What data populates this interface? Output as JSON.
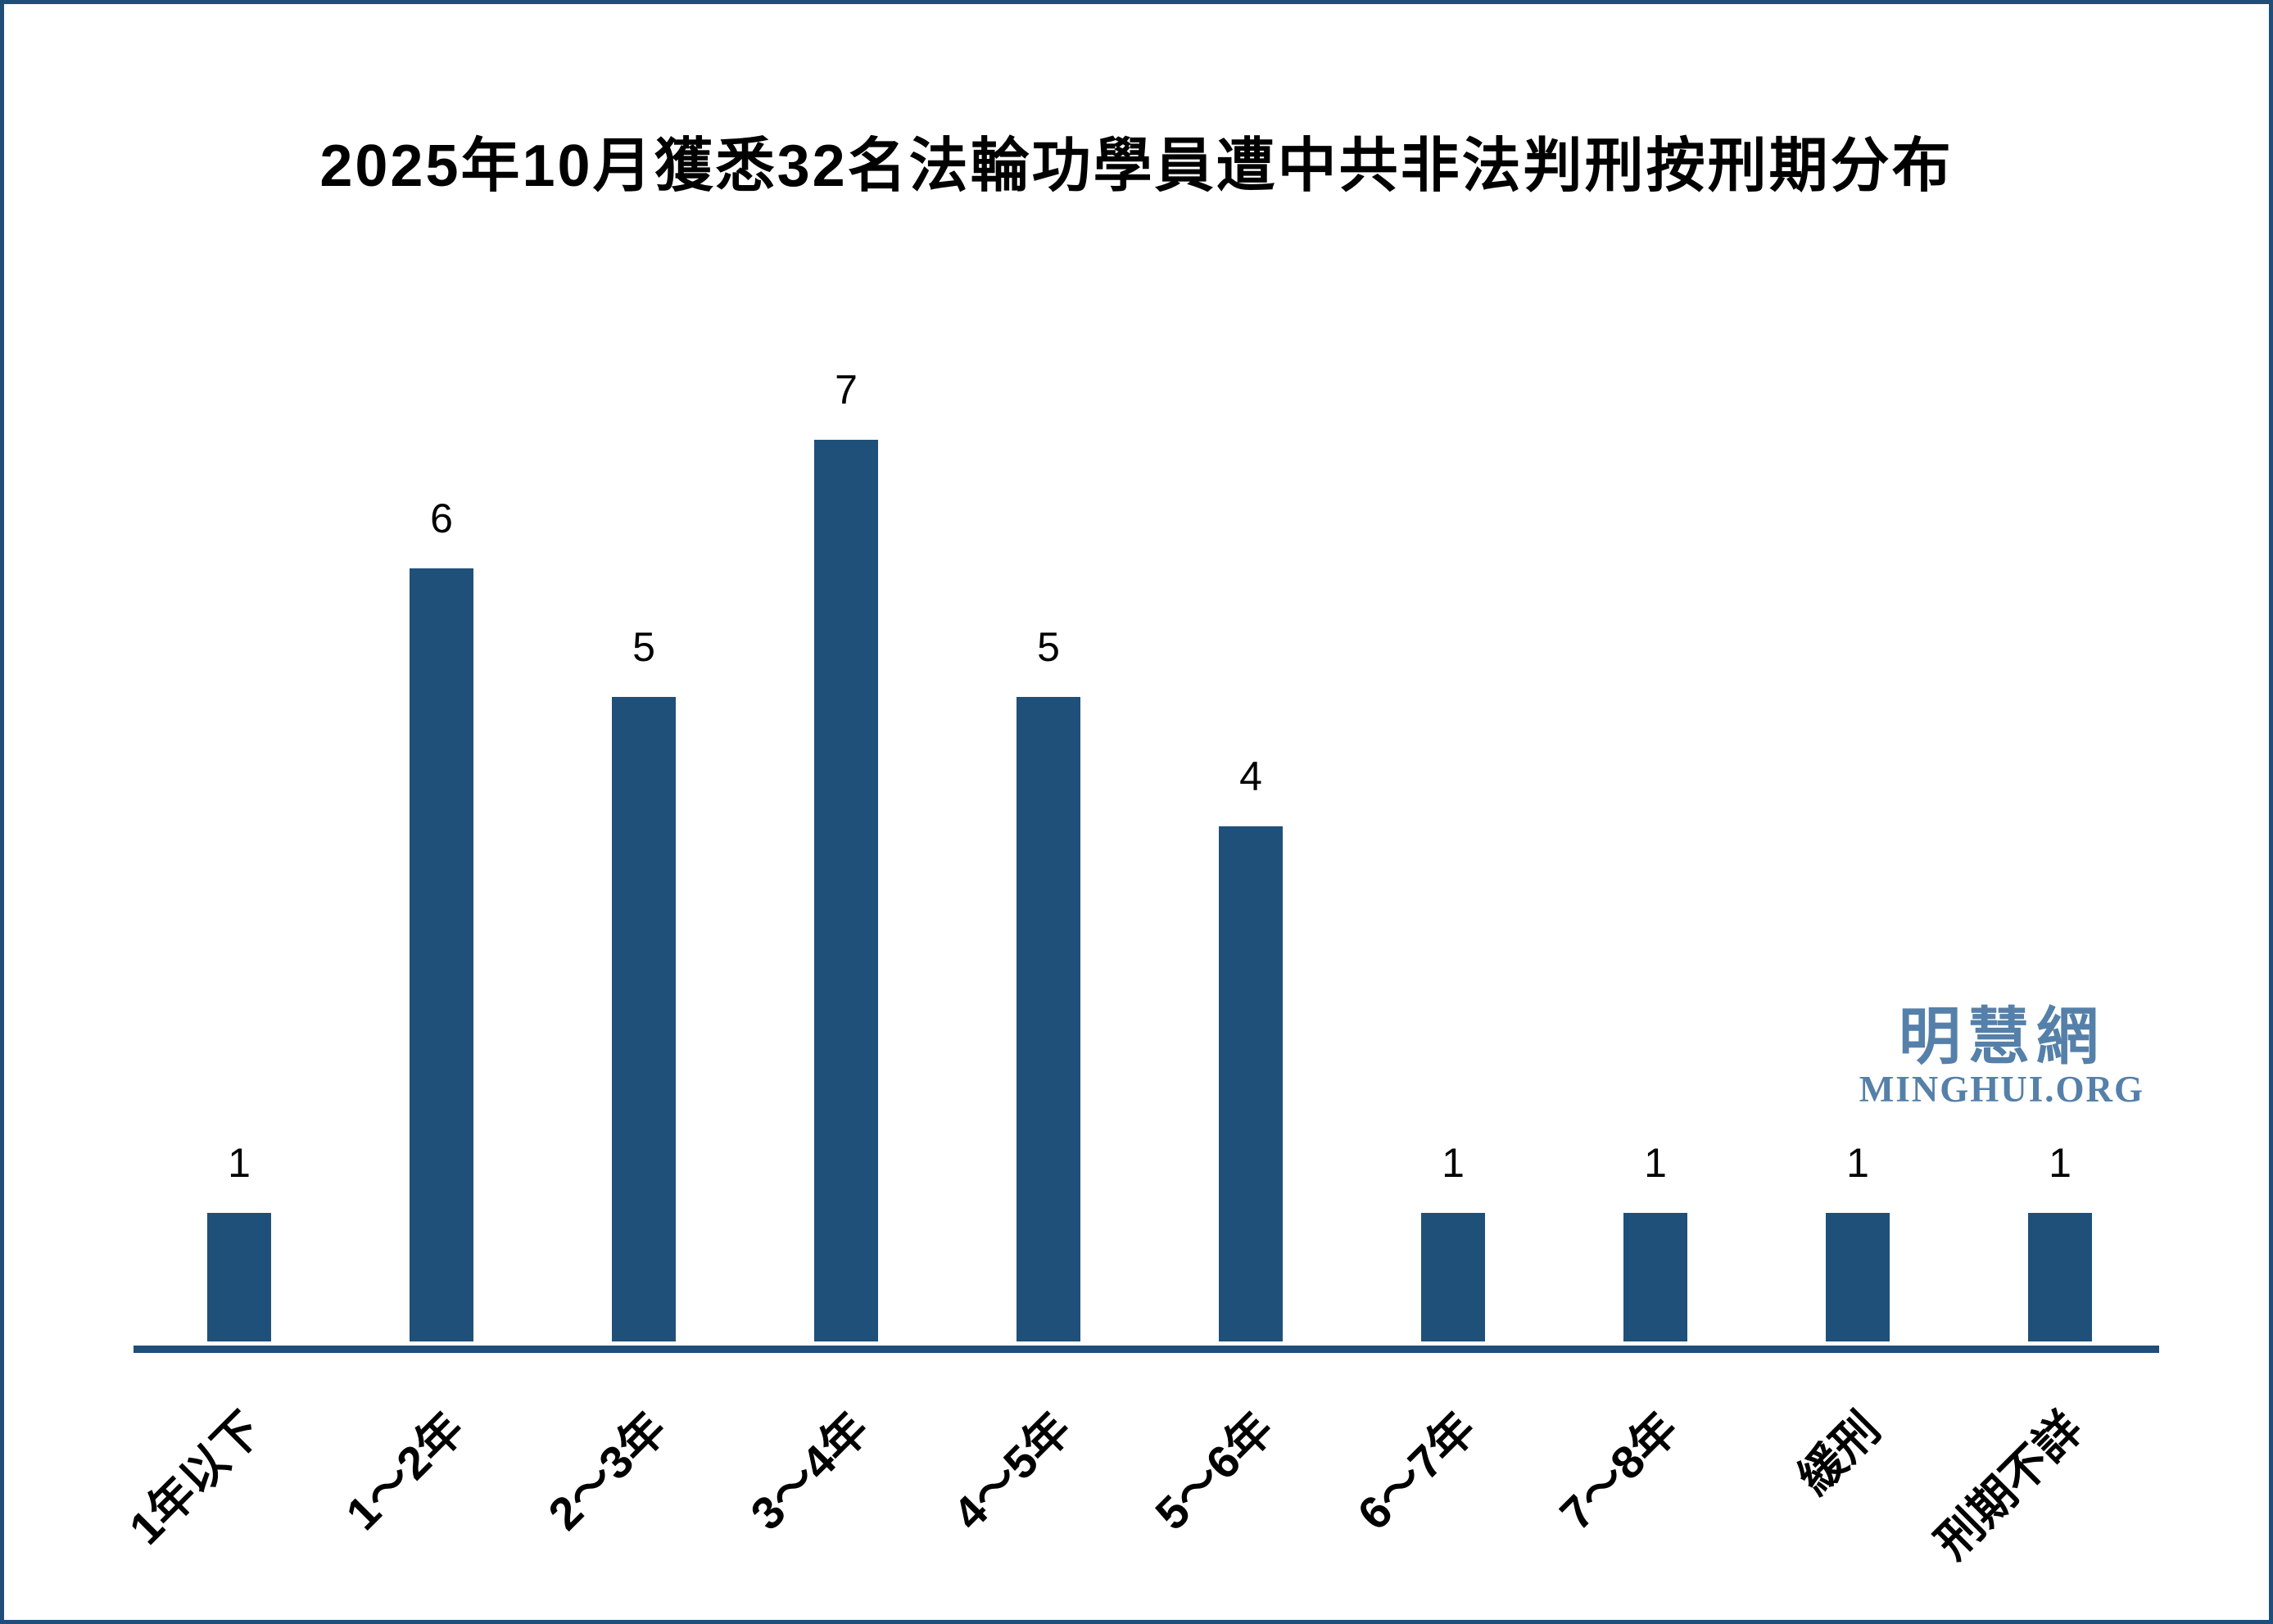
{
  "chart_data": {
    "type": "bar",
    "title": "2025年10月獲悉32名法輪功學員遭中共非法判刑按刑期分布",
    "categories": [
      "1年以下",
      "1～2年",
      "2～3年",
      "3～4年",
      "4～5年",
      "5～6年",
      "6～7年",
      "7～8年",
      "緩刑",
      "刑期不詳"
    ],
    "values": [
      1,
      6,
      5,
      7,
      5,
      4,
      1,
      1,
      1,
      1
    ],
    "xlabel": "",
    "ylabel": "",
    "ylim": [
      0,
      7.7
    ],
    "grid": false,
    "legend_position": "none",
    "value_labels_shown": true,
    "bar_color": "#1F5079",
    "axis_color": "#1F4E79",
    "tick_label_rotation_deg": 45
  },
  "watermark": {
    "cjk": "明慧網",
    "latin": "MINGHUI.ORG",
    "color": "#5580A9"
  },
  "frame": {
    "border_color": "#1F4E79",
    "background_color": "#FFFFFF"
  }
}
